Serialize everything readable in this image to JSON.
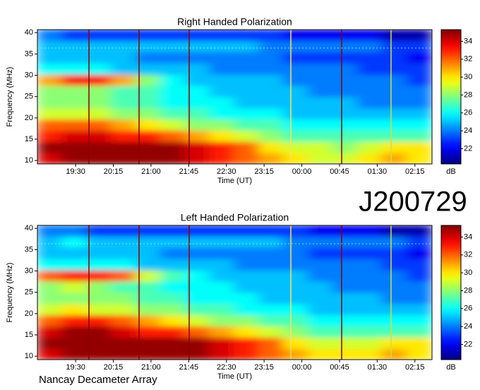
{
  "header": {
    "id": "J200729"
  },
  "footer": "Nancay Decameter Array",
  "chart_data": [
    {
      "type": "heatmap",
      "title": "Right Handed Polarization",
      "xlabel": "Time (UT)",
      "ylabel": "Frequency (MHz)",
      "colorbar_label": "dB",
      "xlim": [
        18.74,
        26.59
      ],
      "xticks": [
        {
          "value": 19.5,
          "label": "19:30"
        },
        {
          "value": 20.25,
          "label": "20:15"
        },
        {
          "value": 21,
          "label": "21:00"
        },
        {
          "value": 21.75,
          "label": "21:45"
        },
        {
          "value": 22.5,
          "label": "22:30"
        },
        {
          "value": 23.25,
          "label": "23:15"
        },
        {
          "value": 24,
          "label": "00:00"
        },
        {
          "value": 24.75,
          "label": "00:45"
        },
        {
          "value": 25.5,
          "label": "01:30"
        },
        {
          "value": 26.25,
          "label": "02:15"
        }
      ],
      "ylim": [
        9.2,
        40.7
      ],
      "yticks": [
        10,
        15,
        20,
        25,
        30,
        35,
        40
      ],
      "clim": [
        20.3,
        35.3
      ],
      "cticks": [
        22,
        24,
        26,
        28,
        30,
        32,
        34
      ],
      "colormap": "jet",
      "x": [
        18.98,
        19.47,
        19.96,
        20.45,
        20.94,
        21.43,
        21.92,
        22.41,
        22.9,
        23.39,
        23.88,
        24.37,
        24.86,
        25.35,
        25.84,
        26.33
      ],
      "y": [
        10.5,
        13.1,
        15.8,
        18.4,
        21.0,
        23.6,
        26.3,
        28.9,
        31.5,
        34.2,
        36.8,
        39.4
      ],
      "z": [
        [
          34,
          35,
          35,
          35,
          35,
          35,
          34,
          33,
          32,
          31,
          30,
          29,
          29,
          30,
          31,
          30
        ],
        [
          35,
          35,
          35,
          35,
          35,
          35,
          34,
          33,
          32,
          30,
          29,
          29,
          28,
          29,
          30,
          30
        ],
        [
          33,
          34,
          34,
          33,
          33,
          32,
          31,
          30,
          29,
          28,
          27,
          27,
          27,
          27,
          27,
          27
        ],
        [
          32,
          32,
          32,
          31,
          30,
          29,
          28,
          28,
          27,
          27,
          26,
          26,
          26,
          26,
          26,
          26
        ],
        [
          29,
          29,
          29,
          28,
          28,
          27,
          27,
          26,
          26,
          26,
          25,
          25,
          25,
          25,
          25,
          25
        ],
        [
          28,
          28,
          28,
          27,
          27,
          26,
          26,
          26,
          25,
          25,
          25,
          25,
          25,
          24,
          24,
          24
        ],
        [
          28,
          28,
          28,
          27,
          27,
          26,
          26,
          25,
          25,
          25,
          25,
          24,
          24,
          24,
          24,
          24
        ],
        [
          31,
          33,
          33,
          31,
          28,
          26,
          25,
          25,
          25,
          25,
          24,
          24,
          24,
          24,
          24,
          23
        ],
        [
          26,
          26,
          26,
          25,
          25,
          25,
          25,
          24,
          24,
          24,
          24,
          24,
          24,
          23,
          23,
          23
        ],
        [
          25,
          25,
          25,
          25,
          24,
          24,
          24,
          24,
          24,
          24,
          23,
          23,
          23,
          23,
          23,
          22
        ],
        [
          25,
          25,
          25,
          25,
          25,
          25,
          25,
          25,
          25,
          24,
          24,
          24,
          24,
          24,
          23,
          23
        ],
        [
          24,
          23,
          23,
          23,
          23,
          23,
          23,
          23,
          23,
          23,
          22,
          22,
          22,
          22,
          21,
          21
        ]
      ]
    },
    {
      "type": "heatmap",
      "title": "Left Handed Polarization",
      "xlabel": "Time (UT)",
      "ylabel": "Frequency (MHz)",
      "colorbar_label": "dB",
      "xlim": [
        18.74,
        26.59
      ],
      "xticks": [
        {
          "value": 19.5,
          "label": "19:30"
        },
        {
          "value": 20.25,
          "label": "20:15"
        },
        {
          "value": 21,
          "label": "21:00"
        },
        {
          "value": 21.75,
          "label": "21:45"
        },
        {
          "value": 22.5,
          "label": "22:30"
        },
        {
          "value": 23.25,
          "label": "23:15"
        },
        {
          "value": 24,
          "label": "00:00"
        },
        {
          "value": 24.75,
          "label": "00:45"
        },
        {
          "value": 25.5,
          "label": "01:30"
        },
        {
          "value": 26.25,
          "label": "02:15"
        }
      ],
      "ylim": [
        9.2,
        40.7
      ],
      "yticks": [
        10,
        15,
        20,
        25,
        30,
        35,
        40
      ],
      "clim": [
        20.3,
        35.3
      ],
      "cticks": [
        22,
        24,
        26,
        28,
        30,
        32,
        34
      ],
      "colormap": "jet",
      "x": [
        18.98,
        19.47,
        19.96,
        20.45,
        20.94,
        21.43,
        21.92,
        22.41,
        22.9,
        23.39,
        23.88,
        24.37,
        24.86,
        25.35,
        25.84,
        26.33
      ],
      "y": [
        10.5,
        13.1,
        15.8,
        18.4,
        21.0,
        23.6,
        26.3,
        28.9,
        31.5,
        34.2,
        36.8,
        39.4
      ],
      "z": [
        [
          34,
          35,
          35,
          35,
          35,
          35,
          35,
          34,
          33,
          32,
          31,
          30,
          30,
          30,
          31,
          30
        ],
        [
          35,
          35,
          35,
          35,
          35,
          35,
          35,
          34,
          33,
          32,
          30,
          29,
          29,
          29,
          30,
          30
        ],
        [
          34,
          35,
          35,
          34,
          33,
          33,
          32,
          31,
          30,
          29,
          28,
          27,
          27,
          27,
          27,
          27
        ],
        [
          32,
          33,
          33,
          32,
          31,
          30,
          29,
          28,
          28,
          27,
          27,
          26,
          26,
          26,
          26,
          26
        ],
        [
          29,
          30,
          29,
          29,
          28,
          28,
          27,
          27,
          26,
          26,
          26,
          25,
          25,
          25,
          25,
          25
        ],
        [
          28,
          28,
          28,
          28,
          27,
          27,
          26,
          26,
          26,
          25,
          25,
          25,
          25,
          25,
          24,
          24
        ],
        [
          28,
          29,
          28,
          27,
          27,
          26,
          26,
          26,
          25,
          25,
          25,
          25,
          24,
          24,
          24,
          24
        ],
        [
          32,
          33,
          33,
          32,
          29,
          27,
          26,
          25,
          25,
          25,
          25,
          24,
          24,
          24,
          24,
          23
        ],
        [
          26,
          26,
          26,
          26,
          25,
          25,
          25,
          25,
          24,
          24,
          24,
          24,
          24,
          24,
          23,
          23
        ],
        [
          25,
          25,
          25,
          25,
          25,
          24,
          24,
          24,
          24,
          24,
          24,
          23,
          23,
          23,
          23,
          22
        ],
        [
          25,
          26,
          25,
          25,
          25,
          25,
          25,
          25,
          25,
          25,
          24,
          24,
          24,
          24,
          24,
          23
        ],
        [
          24,
          24,
          23,
          23,
          23,
          23,
          23,
          23,
          23,
          23,
          23,
          22,
          22,
          22,
          21,
          21
        ]
      ]
    }
  ]
}
